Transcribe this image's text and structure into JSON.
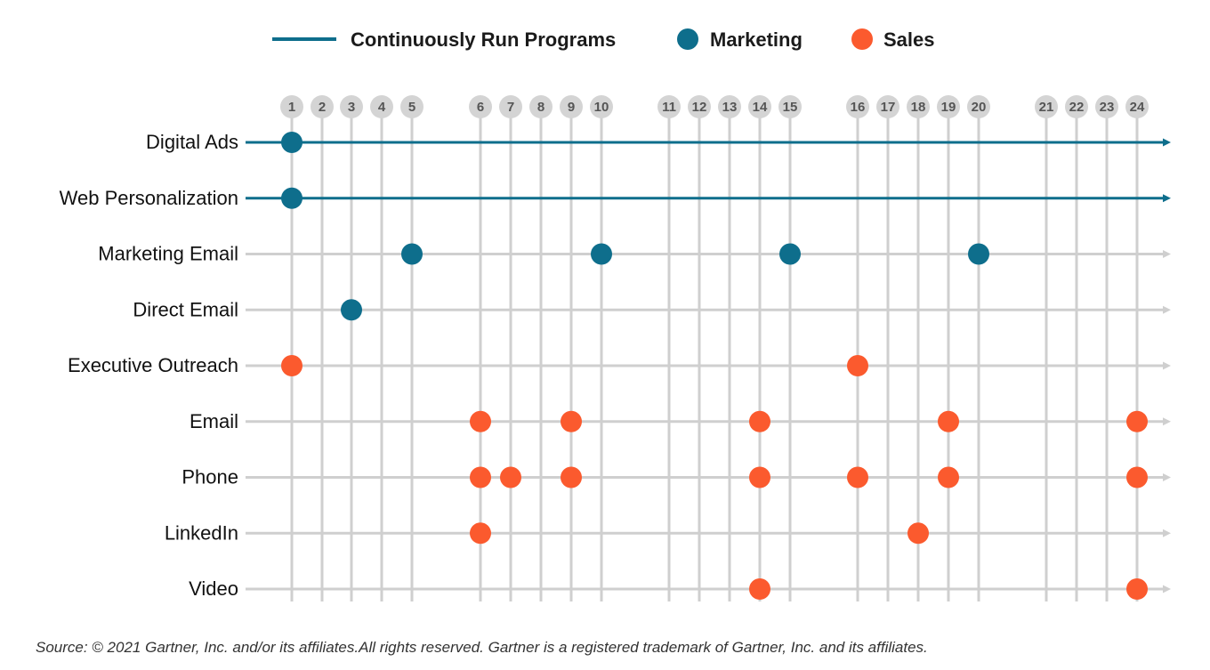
{
  "legend": {
    "line_label": "Continuously Run Programs",
    "marketing_label": "Marketing",
    "sales_label": "Sales"
  },
  "colors": {
    "marketing": "#0e6e8c",
    "sales": "#fb5a2e",
    "grid": "#cfcfcf",
    "tick_badge": "#d4d4d4"
  },
  "chart_data": {
    "type": "scatter",
    "x_ticks": [
      "1",
      "2",
      "3",
      "4",
      "5",
      "6",
      "7",
      "8",
      "9",
      "10",
      "11",
      "12",
      "13",
      "14",
      "15",
      "16",
      "17",
      "18",
      "19",
      "20",
      "21",
      "22",
      "23",
      "24"
    ],
    "rows": [
      {
        "label": "Digital Ads",
        "continuous": true,
        "marketing": [
          1
        ],
        "sales": []
      },
      {
        "label": "Web Personalization",
        "continuous": true,
        "marketing": [
          1
        ],
        "sales": []
      },
      {
        "label": "Marketing Email",
        "continuous": false,
        "marketing": [
          5,
          10,
          15,
          20
        ],
        "sales": []
      },
      {
        "label": "Direct Email",
        "continuous": false,
        "marketing": [
          3
        ],
        "sales": []
      },
      {
        "label": "Executive Outreach",
        "continuous": false,
        "marketing": [],
        "sales": [
          1,
          16
        ]
      },
      {
        "label": "Email",
        "continuous": false,
        "marketing": [],
        "sales": [
          6,
          9,
          14,
          19,
          24
        ]
      },
      {
        "label": "Phone",
        "continuous": false,
        "marketing": [],
        "sales": [
          6,
          7,
          9,
          14,
          16,
          19,
          24
        ]
      },
      {
        "label": "LinkedIn",
        "continuous": false,
        "marketing": [],
        "sales": [
          6,
          18
        ]
      },
      {
        "label": "Video",
        "continuous": false,
        "marketing": [],
        "sales": [
          14,
          24
        ]
      }
    ],
    "grid": true,
    "legend_position": "top"
  },
  "source": "Source: © 2021 Gartner, Inc. and/or its affiliates.All rights reserved. Gartner is a registered trademark of Gartner, Inc. and its affiliates."
}
